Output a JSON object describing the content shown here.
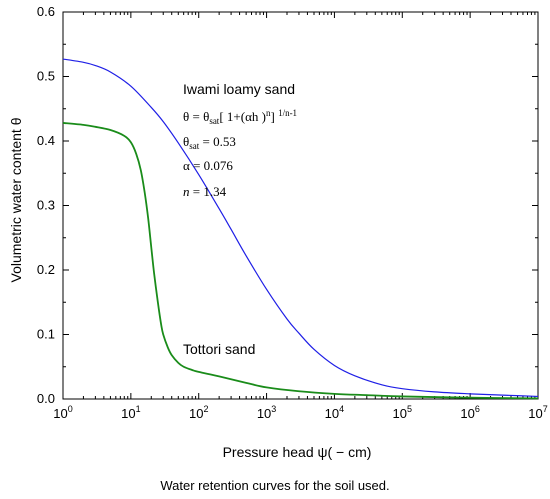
{
  "caption": "Water retention curves for the soil used.",
  "chart_data": {
    "type": "line",
    "xlabel": "Pressure head ψ( − cm)",
    "ylabel": "Volumetric water content θ",
    "xscale": "log",
    "xlim": [
      1,
      10000000
    ],
    "ylim": [
      0,
      0.6
    ],
    "x_ticks": [
      {
        "value": 1,
        "base": "10",
        "exp": "0"
      },
      {
        "value": 10,
        "base": "10",
        "exp": "1"
      },
      {
        "value": 100,
        "base": "10",
        "exp": "2"
      },
      {
        "value": 1000,
        "base": "10",
        "exp": "3"
      },
      {
        "value": 10000,
        "base": "10",
        "exp": "4"
      },
      {
        "value": 100000,
        "base": "10",
        "exp": "5"
      },
      {
        "value": 1000000,
        "base": "10",
        "exp": "6"
      },
      {
        "value": 10000000,
        "base": "10",
        "exp": "7"
      }
    ],
    "y_ticks": [
      {
        "value": 0,
        "label": "0.0"
      },
      {
        "value": 0.1,
        "label": "0.1"
      },
      {
        "value": 0.2,
        "label": "0.2"
      },
      {
        "value": 0.3,
        "label": "0.3"
      },
      {
        "value": 0.4,
        "label": "0.4"
      },
      {
        "value": 0.5,
        "label": "0.5"
      },
      {
        "value": 0.6,
        "label": "0.6"
      }
    ],
    "grid": false,
    "series": [
      {
        "name": "Iwami loamy sand",
        "color": "#1f1fe6",
        "x": [
          1,
          2,
          3,
          5,
          10,
          20,
          30,
          50,
          100,
          200,
          300,
          500,
          1000,
          2000,
          3000,
          5000,
          10000,
          20000,
          50000,
          100000,
          300000,
          1000000,
          3000000,
          10000000
        ],
        "y": [
          0.527,
          0.522,
          0.517,
          0.507,
          0.485,
          0.452,
          0.43,
          0.397,
          0.348,
          0.295,
          0.263,
          0.222,
          0.17,
          0.124,
          0.102,
          0.077,
          0.052,
          0.036,
          0.022,
          0.016,
          0.011,
          0.008,
          0.006,
          0.004
        ]
      },
      {
        "name": "Tottori sand",
        "color": "#1a8c1a",
        "x": [
          1,
          2,
          3,
          5,
          8,
          10,
          12,
          14,
          16,
          18,
          20,
          22,
          25,
          28,
          30,
          35,
          40,
          50,
          60,
          80,
          100,
          200,
          500,
          1000,
          3000,
          10000,
          30000,
          100000,
          1000000,
          10000000
        ],
        "y": [
          0.428,
          0.425,
          0.422,
          0.417,
          0.408,
          0.398,
          0.38,
          0.355,
          0.32,
          0.28,
          0.235,
          0.195,
          0.15,
          0.115,
          0.1,
          0.08,
          0.068,
          0.056,
          0.05,
          0.045,
          0.042,
          0.035,
          0.025,
          0.018,
          0.012,
          0.008,
          0.006,
          0.004,
          0.002,
          0.001
        ]
      }
    ],
    "annotations": {
      "series1_label": "Iwami loamy sand",
      "formula": {
        "theta": "θ",
        "eq": " = ",
        "sat": "sat",
        "bracket_open": "[ 1+(",
        "alpha": "α",
        "h": "h )",
        "n_sup": "n",
        "bracket_close": "] ",
        "exp_sup": "1/n-1"
      },
      "theta_sat_line": {
        "sym": "θ",
        "sub": "sat",
        "value": " = 0.53"
      },
      "alpha_line": {
        "sym": "α",
        "value": " = 0.076"
      },
      "n_line": {
        "sym": "n",
        "value": " = 1.34"
      },
      "series2_label": "Tottori sand"
    }
  }
}
